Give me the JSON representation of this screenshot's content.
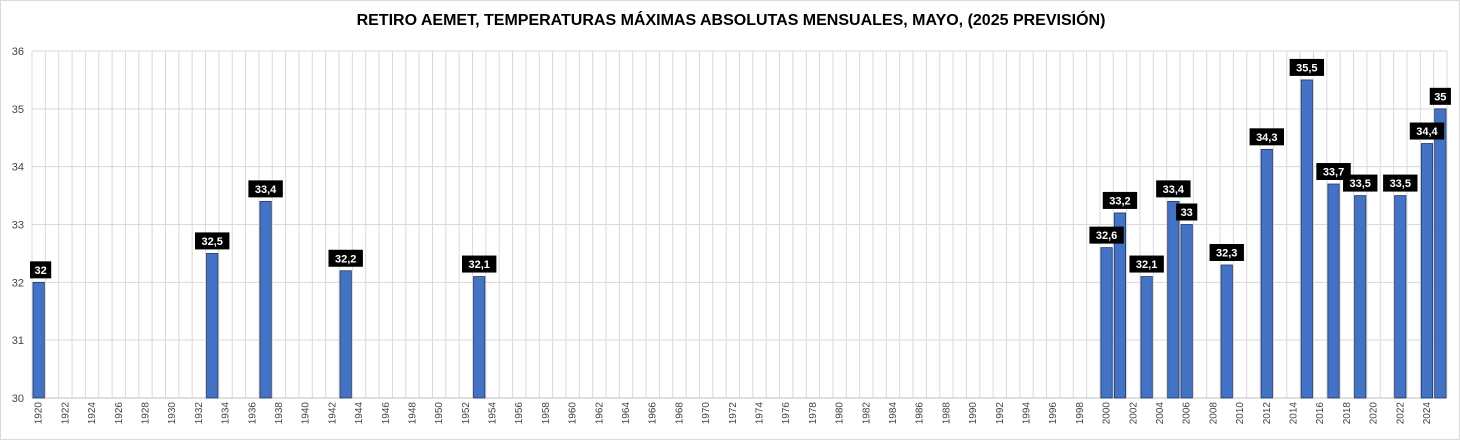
{
  "chart_data": {
    "type": "bar",
    "title": "RETIRO AEMET, TEMPERATURAS MÁXIMAS ABSOLUTAS MENSUALES, MAYO, (2025 PREVISIÓN)",
    "xlabel": "",
    "ylabel": "",
    "ylim": [
      30,
      36
    ],
    "yticks": [
      30,
      31,
      32,
      33,
      34,
      35,
      36
    ],
    "x_range": [
      1920,
      2025
    ],
    "xtick_labels": [
      "1920",
      "1922",
      "1924",
      "1926",
      "1928",
      "1930",
      "1932",
      "1934",
      "1936",
      "1938",
      "1940",
      "1942",
      "1944",
      "1946",
      "1948",
      "1950",
      "1952",
      "1954",
      "1956",
      "1958",
      "1960",
      "1962",
      "1964",
      "1966",
      "1968",
      "1970",
      "1972",
      "1974",
      "1976",
      "1978",
      "1980",
      "1982",
      "1984",
      "1986",
      "1988",
      "1990",
      "1992",
      "1994",
      "1996",
      "1998",
      "2000",
      "2002",
      "2004",
      "2006",
      "2008",
      "2010",
      "2012",
      "2014",
      "2016",
      "2018",
      "2020",
      "2022",
      "2024"
    ],
    "grid": true,
    "bar_color": "#4472c4",
    "label_bg_color": "#000000",
    "points": [
      {
        "x": 1920,
        "y": 32,
        "label": "32"
      },
      {
        "x": 1933,
        "y": 32.5,
        "label": "32,5"
      },
      {
        "x": 1937,
        "y": 33.4,
        "label": "33,4"
      },
      {
        "x": 1943,
        "y": 32.2,
        "label": "32,2"
      },
      {
        "x": 1953,
        "y": 32.1,
        "label": "32,1"
      },
      {
        "x": 2000,
        "y": 32.6,
        "label": "32,6"
      },
      {
        "x": 2001,
        "y": 33.2,
        "label": "33,2"
      },
      {
        "x": 2003,
        "y": 32.1,
        "label": "32,1"
      },
      {
        "x": 2005,
        "y": 33.4,
        "label": "33,4"
      },
      {
        "x": 2006,
        "y": 33,
        "label": "33"
      },
      {
        "x": 2009,
        "y": 32.3,
        "label": "32,3"
      },
      {
        "x": 2012,
        "y": 34.3,
        "label": "34,3"
      },
      {
        "x": 2015,
        "y": 35.5,
        "label": "35,5"
      },
      {
        "x": 2017,
        "y": 33.7,
        "label": "33,7"
      },
      {
        "x": 2019,
        "y": 33.5,
        "label": "33,5"
      },
      {
        "x": 2022,
        "y": 33.5,
        "label": "33,5"
      },
      {
        "x": 2024,
        "y": 34.4,
        "label": "34,4"
      },
      {
        "x": 2025,
        "y": 35,
        "label": "35"
      }
    ]
  }
}
